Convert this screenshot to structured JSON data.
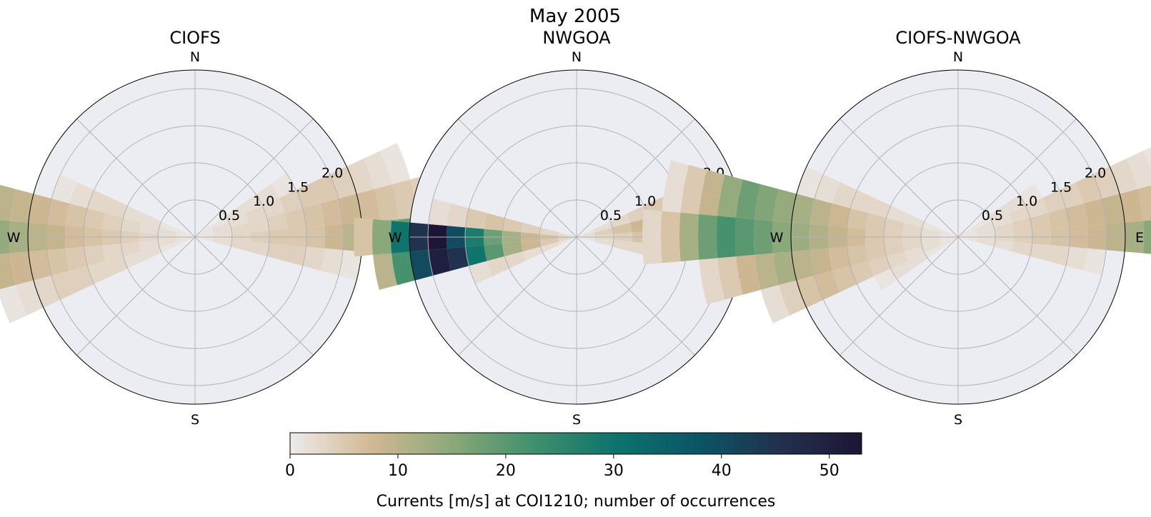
{
  "figure": {
    "title": "May 2005",
    "colorbar": {
      "label": "Currents [m/s] at COI1210; number of occurrences",
      "min": 0,
      "max": 53,
      "ticks": [
        "0",
        "10",
        "20",
        "30",
        "40",
        "50"
      ],
      "colormap": [
        "#eeebeb",
        "#d1b894",
        "#8aa879",
        "#3f8f6d",
        "#0d736c",
        "#0b5566",
        "#22304d",
        "#1d1535"
      ]
    },
    "compass": [
      "N",
      "E",
      "S",
      "W"
    ],
    "radial_ticks": [
      "0.5",
      "1.0",
      "1.5",
      "2.0"
    ],
    "panel_background": "#ececf3",
    "grid_color": "#b3b3b3"
  },
  "chart_data": [
    {
      "type": "polar-bar",
      "title": "CIOFS",
      "r_max": 2.25,
      "r_step": 0.25,
      "bin_width_deg": 10,
      "bins": [
        {
          "dir": 90,
          "counts": [
            1,
            2,
            3,
            4,
            5,
            5,
            6,
            8,
            10,
            12,
            15,
            18,
            15,
            12,
            10,
            8,
            6,
            4
          ]
        },
        {
          "dir": 80,
          "counts": [
            1,
            2,
            3,
            3,
            4,
            5,
            6,
            7,
            8,
            7,
            6,
            5,
            4,
            3,
            2
          ]
        },
        {
          "dir": 70,
          "counts": [
            1,
            2,
            2,
            3,
            3,
            4,
            5,
            5,
            4,
            3,
            2,
            1
          ]
        },
        {
          "dir": 100,
          "counts": [
            1,
            2,
            3,
            3,
            4,
            4,
            3,
            2,
            1
          ]
        },
        {
          "dir": 60,
          "counts": [
            1,
            1,
            2,
            2,
            2,
            1
          ]
        },
        {
          "dir": 270,
          "counts": [
            1,
            2,
            3,
            4,
            5,
            6,
            7,
            9,
            10,
            12,
            14,
            16,
            18,
            20,
            22,
            25,
            20,
            15,
            10,
            6,
            4,
            2
          ]
        },
        {
          "dir": 280,
          "counts": [
            1,
            2,
            2,
            3,
            4,
            5,
            6,
            7,
            8,
            9,
            10,
            12,
            14,
            16,
            14,
            12,
            10,
            8,
            6,
            4,
            2,
            1
          ]
        },
        {
          "dir": 260,
          "counts": [
            1,
            2,
            2,
            3,
            3,
            4,
            5,
            6,
            7,
            8,
            9,
            10,
            9,
            8,
            6,
            4,
            3,
            2,
            1
          ]
        },
        {
          "dir": 250,
          "counts": [
            1,
            1,
            2,
            2,
            3,
            3,
            4,
            4,
            3,
            2,
            1
          ]
        },
        {
          "dir": 290,
          "counts": [
            1,
            1,
            2,
            2,
            3,
            3,
            2,
            1
          ]
        }
      ]
    },
    {
      "type": "polar-bar",
      "title": "NWGOA",
      "r_max": 2.25,
      "r_step": 0.25,
      "bin_width_deg": 10,
      "bins": [
        {
          "dir": 90,
          "counts": [
            2,
            3,
            4,
            6,
            8,
            10,
            12,
            10,
            6
          ]
        },
        {
          "dir": 80,
          "counts": [
            2,
            4,
            6,
            8,
            12,
            16,
            26,
            18,
            8
          ]
        },
        {
          "dir": 70,
          "counts": [
            1,
            2,
            3,
            4,
            5,
            4,
            2
          ]
        },
        {
          "dir": 100,
          "counts": [
            1,
            2,
            3,
            3,
            2
          ]
        },
        {
          "dir": 270,
          "counts": [
            4,
            6,
            8,
            12,
            18,
            28,
            40,
            53,
            45,
            30,
            15,
            6
          ]
        },
        {
          "dir": 260,
          "counts": [
            3,
            5,
            8,
            12,
            20,
            30,
            45,
            50,
            40,
            22,
            10
          ]
        },
        {
          "dir": 280,
          "counts": [
            2,
            3,
            4,
            5,
            6,
            5,
            3,
            2
          ]
        },
        {
          "dir": 250,
          "counts": [
            1,
            2,
            2,
            3,
            3,
            2
          ]
        }
      ]
    },
    {
      "type": "polar-bar",
      "title": "CIOFS-NWGOA",
      "r_max": 2.25,
      "r_step": 0.25,
      "bin_width_deg": 10,
      "bins": [
        {
          "dir": 90,
          "counts": [
            1,
            2,
            3,
            4,
            5,
            6,
            7,
            8,
            10,
            12,
            15,
            18,
            12,
            8,
            5,
            3
          ]
        },
        {
          "dir": 80,
          "counts": [
            1,
            2,
            3,
            4,
            5,
            6,
            7,
            8,
            9,
            8,
            7,
            5,
            3,
            1
          ]
        },
        {
          "dir": 70,
          "counts": [
            1,
            2,
            2,
            3,
            3,
            4,
            4,
            5,
            4,
            3,
            2,
            1
          ]
        },
        {
          "dir": 100,
          "counts": [
            1,
            2,
            2,
            3,
            3,
            3,
            2,
            1
          ]
        },
        {
          "dir": 60,
          "counts": [
            1,
            1,
            2,
            2,
            1
          ]
        },
        {
          "dir": 270,
          "counts": [
            1,
            2,
            3,
            4,
            5,
            7,
            9,
            11,
            13,
            15,
            18,
            20,
            22,
            18,
            12,
            6,
            3
          ]
        },
        {
          "dir": 280,
          "counts": [
            1,
            2,
            3,
            4,
            5,
            6,
            8,
            10,
            12,
            14,
            16,
            18,
            14,
            9,
            5,
            2
          ]
        },
        {
          "dir": 260,
          "counts": [
            1,
            2,
            3,
            4,
            5,
            6,
            7,
            9,
            10,
            12,
            10,
            8,
            5,
            3
          ]
        },
        {
          "dir": 250,
          "counts": [
            1,
            2,
            2,
            3,
            4,
            5,
            6,
            7,
            6,
            4,
            2
          ]
        },
        {
          "dir": 290,
          "counts": [
            1,
            1,
            2,
            2,
            3,
            3,
            3,
            2,
            1
          ]
        },
        {
          "dir": 240,
          "counts": [
            1,
            1,
            2,
            2,
            1
          ]
        }
      ]
    }
  ]
}
